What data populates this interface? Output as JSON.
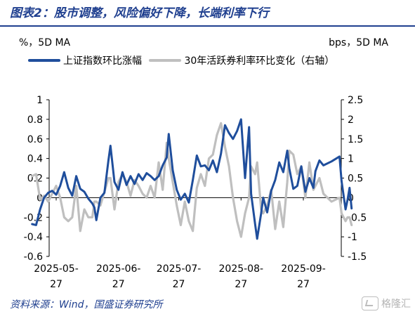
{
  "title": "图表2：股市调整，风险偏好下降，长端利率下行",
  "left_unit": "%，5D MA",
  "right_unit": "bps，5D MA",
  "source": "资料来源：Wind，国盛证券研究所",
  "watermark": "格隆汇",
  "chart_data": {
    "type": "line",
    "title": "",
    "legend_position": "top",
    "grid": false,
    "x_ticks": [
      {
        "date": "2025-05-27",
        "label": [
          "2025-05-",
          "27"
        ]
      },
      {
        "date": "2025-06-27",
        "label": [
          "2025-06-",
          "27"
        ]
      },
      {
        "date": "2025-07-27",
        "label": [
          "2025-07-",
          "27"
        ]
      },
      {
        "date": "2025-08-27",
        "label": [
          "2025-08-",
          "27"
        ]
      },
      {
        "date": "2025-09-27",
        "label": [
          "2025-09-",
          "27"
        ]
      }
    ],
    "y_left": {
      "min": -0.6,
      "max": 1.0,
      "ticks": [
        1,
        0.8,
        0.6,
        0.4,
        0.2,
        0,
        -0.2,
        -0.4,
        -0.6
      ]
    },
    "y_right": {
      "min": -1.5,
      "max": 2.5,
      "ticks": [
        2.5,
        2,
        1.5,
        1,
        0.5,
        0,
        -0.5,
        -1,
        -1.5
      ]
    },
    "series": [
      {
        "name": "上证指数环比涨幅",
        "axis": "left",
        "color": "#1f4e9c",
        "points": [
          [
            "2025-05-15",
            -0.27
          ],
          [
            "2025-05-17",
            -0.28
          ],
          [
            "2025-05-19",
            -0.12
          ],
          [
            "2025-05-21",
            0.0
          ],
          [
            "2025-05-23",
            0.05
          ],
          [
            "2025-05-25",
            0.07
          ],
          [
            "2025-05-27",
            0.03
          ],
          [
            "2025-05-29",
            0.12
          ],
          [
            "2025-05-31",
            0.26
          ],
          [
            "2025-06-02",
            0.1
          ],
          [
            "2025-06-04",
            0.02
          ],
          [
            "2025-06-06",
            0.22
          ],
          [
            "2025-06-08",
            0.09
          ],
          [
            "2025-06-10",
            0.06
          ],
          [
            "2025-06-12",
            -0.01
          ],
          [
            "2025-06-14",
            -0.06
          ],
          [
            "2025-06-15",
            -0.1
          ],
          [
            "2025-06-16",
            -0.23
          ],
          [
            "2025-06-18",
            0.0
          ],
          [
            "2025-06-20",
            0.05
          ],
          [
            "2025-06-22",
            0.38
          ],
          [
            "2025-06-23",
            0.53
          ],
          [
            "2025-06-25",
            0.16
          ],
          [
            "2025-06-27",
            0.08
          ],
          [
            "2025-06-29",
            0.26
          ],
          [
            "2025-07-01",
            0.13
          ],
          [
            "2025-07-03",
            0.22
          ],
          [
            "2025-07-05",
            0.14
          ],
          [
            "2025-07-07",
            0.24
          ],
          [
            "2025-07-09",
            0.18
          ],
          [
            "2025-07-11",
            0.25
          ],
          [
            "2025-07-13",
            0.22
          ],
          [
            "2025-07-15",
            0.18
          ],
          [
            "2025-07-17",
            0.22
          ],
          [
            "2025-07-19",
            0.33
          ],
          [
            "2025-07-21",
            0.41
          ],
          [
            "2025-07-22",
            0.65
          ],
          [
            "2025-07-24",
            0.28
          ],
          [
            "2025-07-26",
            0.08
          ],
          [
            "2025-07-28",
            -0.02
          ],
          [
            "2025-07-30",
            0.04
          ],
          [
            "2025-08-01",
            -0.05
          ],
          [
            "2025-08-03",
            0.18
          ],
          [
            "2025-08-05",
            0.43
          ],
          [
            "2025-08-07",
            0.32
          ],
          [
            "2025-08-09",
            0.33
          ],
          [
            "2025-08-11",
            0.28
          ],
          [
            "2025-08-13",
            0.38
          ],
          [
            "2025-08-15",
            0.26
          ],
          [
            "2025-08-17",
            0.45
          ],
          [
            "2025-08-19",
            0.74
          ],
          [
            "2025-08-21",
            0.66
          ],
          [
            "2025-08-23",
            0.6
          ],
          [
            "2025-08-25",
            0.68
          ],
          [
            "2025-08-27",
            0.8
          ],
          [
            "2025-08-29",
            0.2
          ],
          [
            "2025-08-31",
            0.72
          ],
          [
            "2025-09-01",
            0.04
          ],
          [
            "2025-09-03",
            -0.27
          ],
          [
            "2025-09-04",
            -0.42
          ],
          [
            "2025-09-06",
            -0.16
          ],
          [
            "2025-09-07",
            0.0
          ],
          [
            "2025-09-09",
            -0.15
          ],
          [
            "2025-09-11",
            0.07
          ],
          [
            "2025-09-13",
            0.18
          ],
          [
            "2025-09-15",
            0.36
          ],
          [
            "2025-09-17",
            0.26
          ],
          [
            "2025-09-19",
            0.48
          ],
          [
            "2025-09-20",
            0.3
          ],
          [
            "2025-09-22",
            0.09
          ],
          [
            "2025-09-24",
            0.12
          ],
          [
            "2025-09-26",
            0.32
          ],
          [
            "2025-09-28",
            0.06
          ],
          [
            "2025-09-30",
            0.2
          ],
          [
            "2025-10-02",
            0.1
          ],
          [
            "2025-10-03",
            0.27
          ],
          [
            "2025-10-05",
            0.38
          ],
          [
            "2025-10-07",
            0.33
          ],
          [
            "2025-10-11",
            0.37
          ],
          [
            "2025-10-15",
            0.42
          ],
          [
            "2025-10-16",
            0.17
          ],
          [
            "2025-10-18",
            -0.12
          ],
          [
            "2025-10-19",
            -0.02
          ],
          [
            "2025-10-20",
            0.1
          ],
          [
            "2025-10-21",
            -0.11
          ]
        ]
      },
      {
        "name": "30年活跃券利率环比变化（右轴）",
        "axis": "right",
        "color": "#bfbfbf",
        "points": [
          [
            "2025-05-15",
            0.55
          ],
          [
            "2025-05-17",
            0.6
          ],
          [
            "2025-05-19",
            -0.05
          ],
          [
            "2025-05-21",
            0.05
          ],
          [
            "2025-05-23",
            -0.1
          ],
          [
            "2025-05-25",
            0.1
          ],
          [
            "2025-05-27",
            0.3
          ],
          [
            "2025-05-29",
            0.0
          ],
          [
            "2025-05-31",
            -0.5
          ],
          [
            "2025-06-02",
            -0.6
          ],
          [
            "2025-06-04",
            -0.5
          ],
          [
            "2025-06-06",
            0.3
          ],
          [
            "2025-06-08",
            -0.85
          ],
          [
            "2025-06-10",
            -0.3
          ],
          [
            "2025-06-12",
            -0.5
          ],
          [
            "2025-06-14",
            -0.5
          ],
          [
            "2025-06-15",
            -0.1
          ],
          [
            "2025-06-16",
            -0.1
          ],
          [
            "2025-06-18",
            -0.2
          ],
          [
            "2025-06-20",
            0.15
          ],
          [
            "2025-06-22",
            0.5
          ],
          [
            "2025-06-23",
            0.5
          ],
          [
            "2025-06-25",
            -0.3
          ],
          [
            "2025-06-27",
            0.4
          ],
          [
            "2025-06-29",
            0.6
          ],
          [
            "2025-07-01",
            0.4
          ],
          [
            "2025-07-03",
            0.05
          ],
          [
            "2025-07-05",
            0.45
          ],
          [
            "2025-07-07",
            0.3
          ],
          [
            "2025-07-09",
            0.1
          ],
          [
            "2025-07-11",
            0.0
          ],
          [
            "2025-07-13",
            0.3
          ],
          [
            "2025-07-15",
            0.0
          ],
          [
            "2025-07-17",
            0.9
          ],
          [
            "2025-07-19",
            0.2
          ],
          [
            "2025-07-21",
            1.4
          ],
          [
            "2025-07-22",
            1.0
          ],
          [
            "2025-07-24",
            0.4
          ],
          [
            "2025-07-26",
            -0.2
          ],
          [
            "2025-07-28",
            -0.7
          ],
          [
            "2025-07-30",
            -0.1
          ],
          [
            "2025-08-01",
            -0.6
          ],
          [
            "2025-08-03",
            -0.85
          ],
          [
            "2025-08-05",
            0.25
          ],
          [
            "2025-08-07",
            0.6
          ],
          [
            "2025-08-09",
            0.3
          ],
          [
            "2025-08-11",
            1.0
          ],
          [
            "2025-08-13",
            1.1
          ],
          [
            "2025-08-15",
            1.6
          ],
          [
            "2025-08-17",
            1.9
          ],
          [
            "2025-08-19",
            1.3
          ],
          [
            "2025-08-21",
            0.8
          ],
          [
            "2025-08-23",
            0.0
          ],
          [
            "2025-08-25",
            -0.6
          ],
          [
            "2025-08-27",
            -1.0
          ],
          [
            "2025-08-29",
            -0.4
          ],
          [
            "2025-08-31",
            0.0
          ],
          [
            "2025-09-01",
            0.8
          ],
          [
            "2025-09-03",
            0.6
          ],
          [
            "2025-09-04",
            0.9
          ],
          [
            "2025-09-06",
            -0.3
          ],
          [
            "2025-09-07",
            -0.4
          ],
          [
            "2025-09-09",
            -0.2
          ],
          [
            "2025-09-11",
            0.2
          ],
          [
            "2025-09-13",
            -0.8
          ],
          [
            "2025-09-15",
            -0.1
          ],
          [
            "2025-09-17",
            -0.75
          ],
          [
            "2025-09-19",
            0.4
          ],
          [
            "2025-09-20",
            1.2
          ],
          [
            "2025-09-22",
            1.1
          ],
          [
            "2025-09-24",
            0.6
          ],
          [
            "2025-09-26",
            0.8
          ],
          [
            "2025-09-28",
            0.0
          ],
          [
            "2025-09-30",
            0.9
          ],
          [
            "2025-10-02",
            0.2
          ],
          [
            "2025-10-03",
            0.3
          ],
          [
            "2025-10-05",
            0.5
          ],
          [
            "2025-10-07",
            0.1
          ],
          [
            "2025-10-11",
            -0.1
          ],
          [
            "2025-10-15",
            0.0
          ],
          [
            "2025-10-16",
            -0.4
          ],
          [
            "2025-10-18",
            -0.6
          ],
          [
            "2025-10-19",
            -0.5
          ],
          [
            "2025-10-20",
            -0.5
          ],
          [
            "2025-10-21",
            -0.7
          ]
        ]
      }
    ]
  }
}
